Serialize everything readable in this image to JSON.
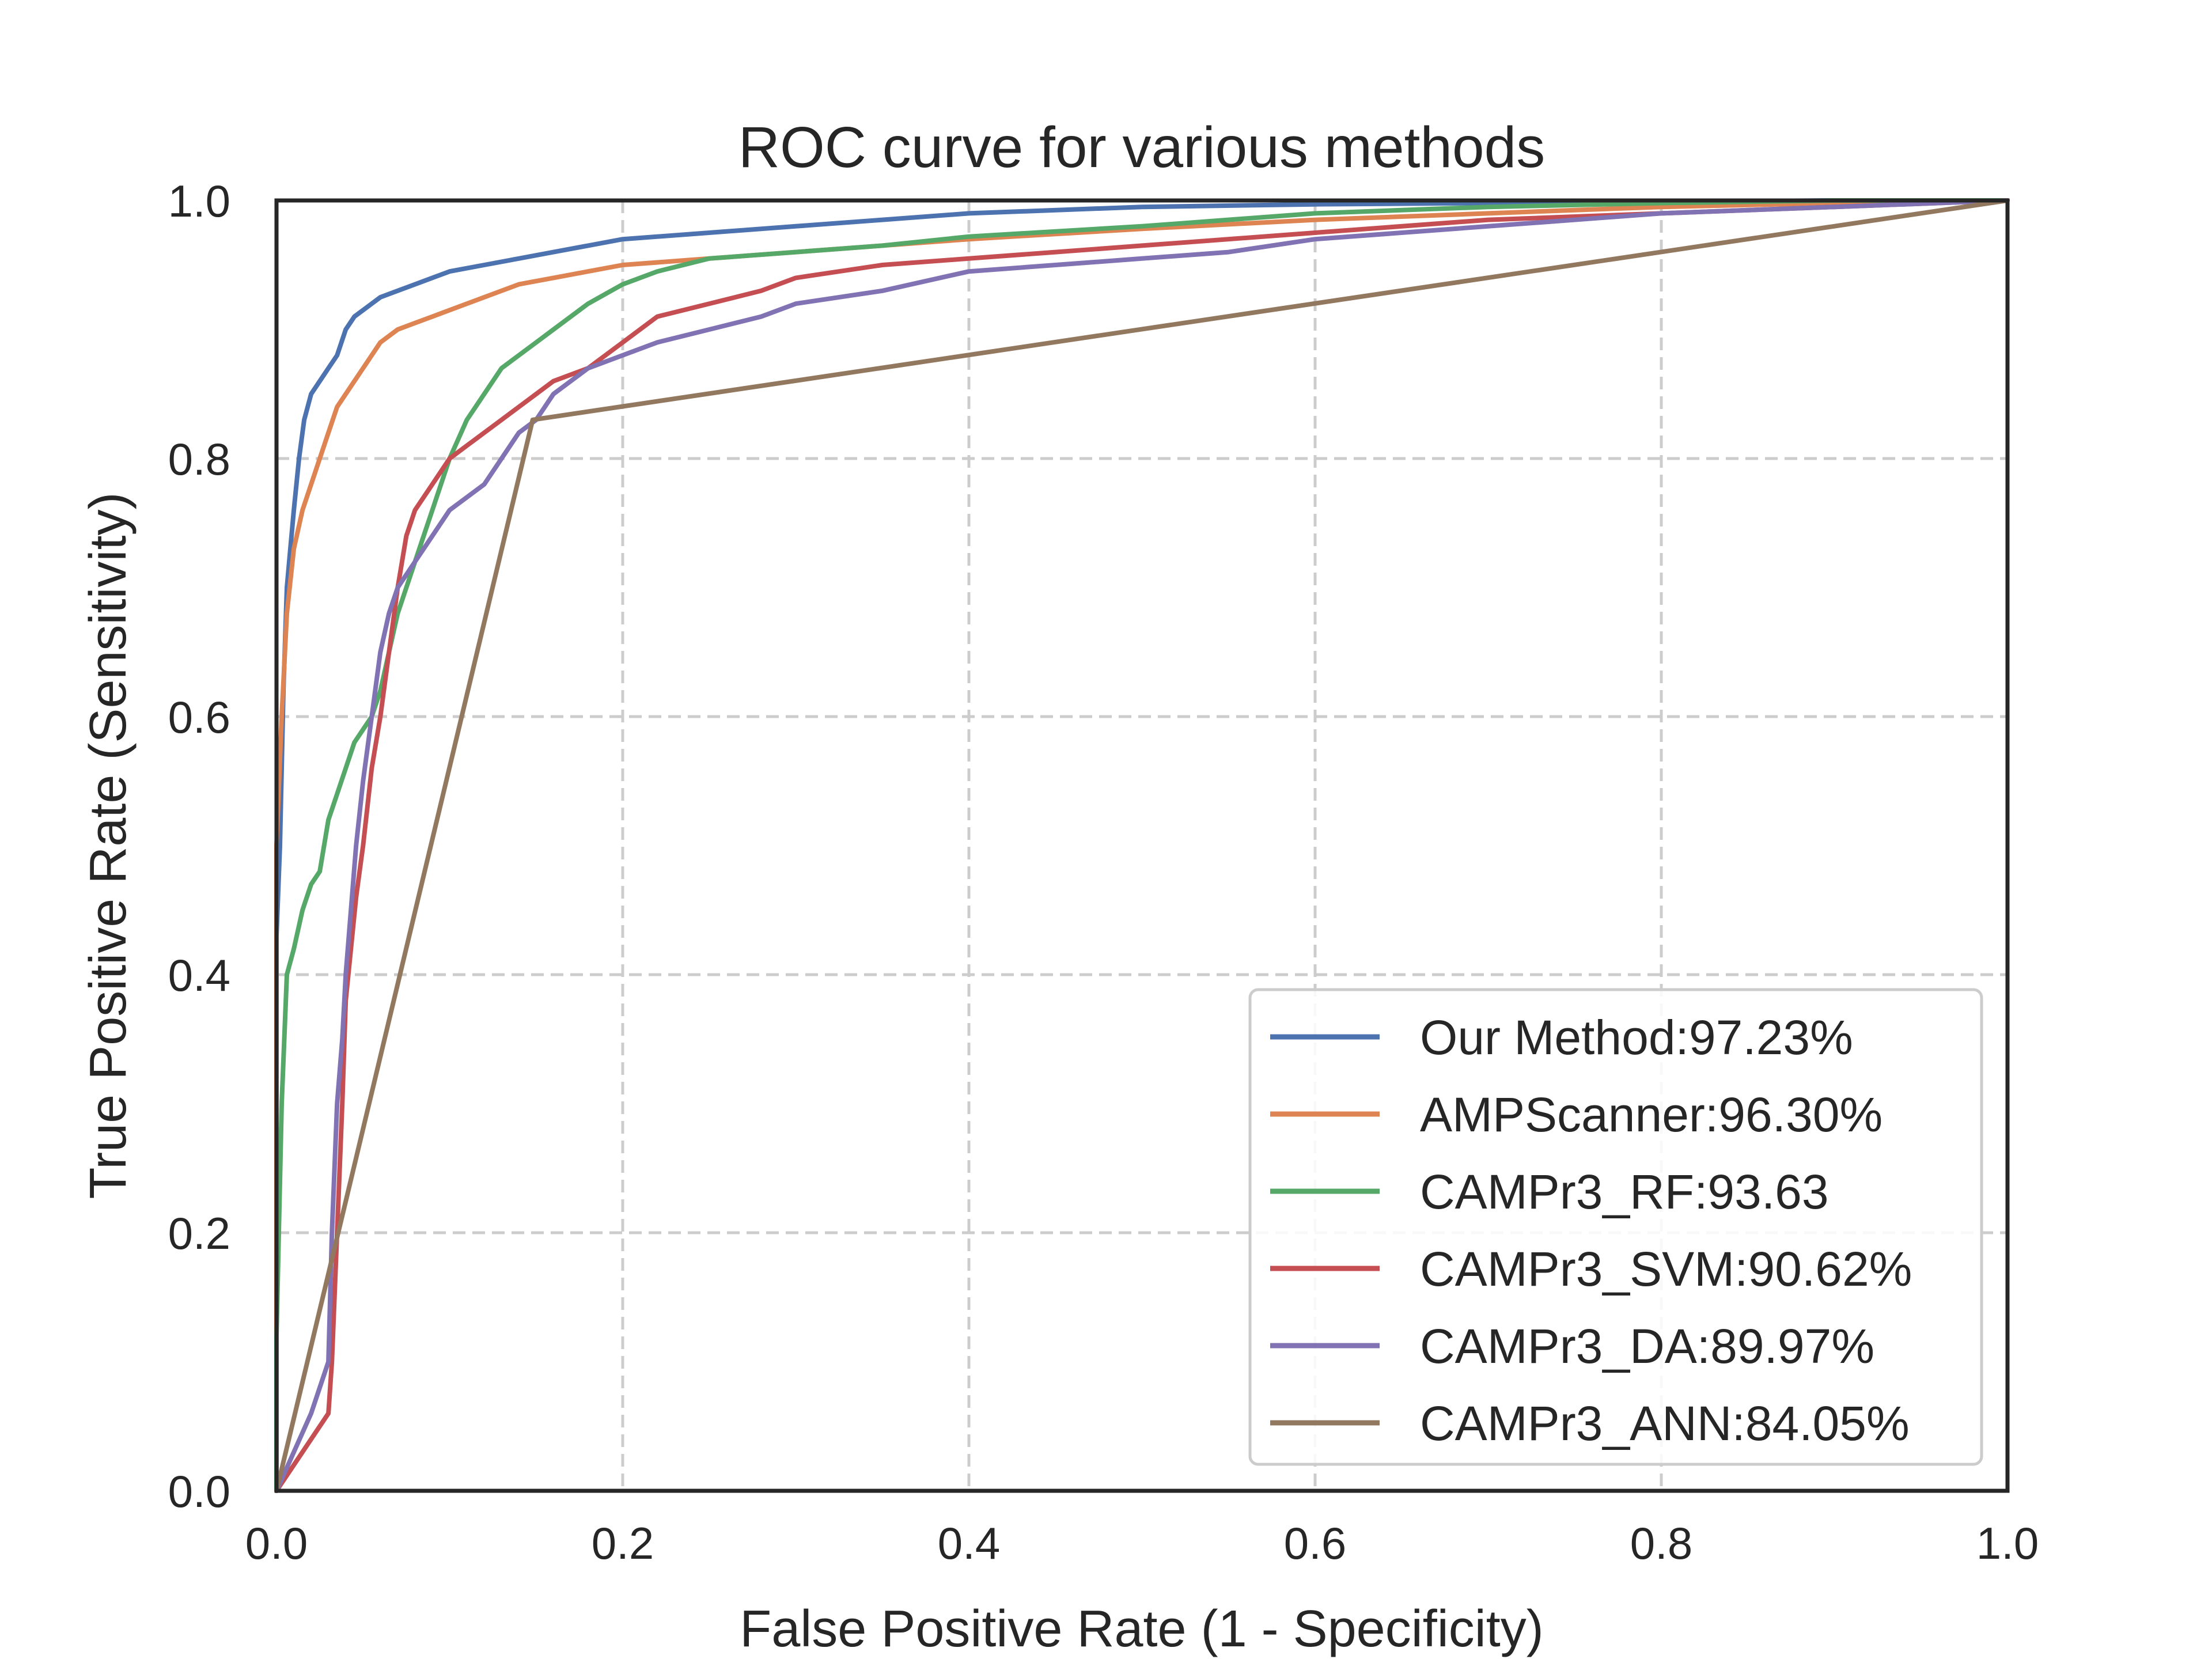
{
  "chart_data": {
    "type": "line",
    "title": "ROC curve for various methods",
    "xlabel": "False Positive Rate (1 - Specificity)",
    "ylabel": "True Positive Rate (Sensitivity)",
    "xlim": [
      0.0,
      1.0
    ],
    "ylim": [
      0.0,
      1.0
    ],
    "x_ticks": [
      "0.0",
      "0.2",
      "0.4",
      "0.6",
      "0.8",
      "1.0"
    ],
    "y_ticks": [
      "0.0",
      "0.2",
      "0.4",
      "0.6",
      "0.8",
      "1.0"
    ],
    "grid": true,
    "legend_position": "lower-right",
    "series": [
      {
        "name": "Our Method:97.23%",
        "color": "#4c72b0",
        "x": [
          0.0,
          0.0,
          0.002,
          0.004,
          0.006,
          0.008,
          0.01,
          0.013,
          0.016,
          0.02,
          0.025,
          0.03,
          0.035,
          0.04,
          0.045,
          0.05,
          0.055,
          0.06,
          0.07,
          0.08,
          0.09,
          0.1,
          0.12,
          0.14,
          0.16,
          0.18,
          0.2,
          0.25,
          0.3,
          0.35,
          0.4,
          0.5,
          0.6,
          0.7,
          0.8,
          0.9,
          1.0
        ],
        "y": [
          0.0,
          0.43,
          0.5,
          0.62,
          0.7,
          0.73,
          0.76,
          0.8,
          0.83,
          0.85,
          0.86,
          0.87,
          0.88,
          0.9,
          0.91,
          0.915,
          0.92,
          0.925,
          0.93,
          0.935,
          0.94,
          0.945,
          0.95,
          0.955,
          0.96,
          0.965,
          0.97,
          0.975,
          0.98,
          0.985,
          0.99,
          0.995,
          0.997,
          0.998,
          0.999,
          1.0,
          1.0
        ]
      },
      {
        "name": "AMPScanner:96.30%",
        "color": "#dd8452",
        "x": [
          0.0,
          0.0,
          0.003,
          0.006,
          0.01,
          0.015,
          0.02,
          0.025,
          0.03,
          0.035,
          0.04,
          0.045,
          0.05,
          0.055,
          0.06,
          0.07,
          0.08,
          0.09,
          0.1,
          0.12,
          0.14,
          0.16,
          0.18,
          0.2,
          0.25,
          0.3,
          0.35,
          0.4,
          0.5,
          0.6,
          0.7,
          0.8,
          0.9,
          1.0
        ],
        "y": [
          0.0,
          0.5,
          0.6,
          0.68,
          0.73,
          0.76,
          0.78,
          0.8,
          0.82,
          0.84,
          0.85,
          0.86,
          0.87,
          0.88,
          0.89,
          0.9,
          0.905,
          0.91,
          0.915,
          0.925,
          0.935,
          0.94,
          0.945,
          0.95,
          0.955,
          0.96,
          0.965,
          0.97,
          0.978,
          0.985,
          0.99,
          0.995,
          0.998,
          1.0
        ]
      },
      {
        "name": "CAMPr3_RF:93.63",
        "color": "#55a868",
        "x": [
          0.0,
          0.0,
          0.003,
          0.006,
          0.01,
          0.015,
          0.02,
          0.025,
          0.03,
          0.035,
          0.04,
          0.045,
          0.05,
          0.055,
          0.06,
          0.065,
          0.07,
          0.075,
          0.08,
          0.09,
          0.1,
          0.11,
          0.12,
          0.13,
          0.14,
          0.15,
          0.16,
          0.18,
          0.2,
          0.22,
          0.25,
          0.3,
          0.35,
          0.4,
          0.5,
          0.6,
          0.7,
          0.8,
          0.9,
          1.0
        ],
        "y": [
          0.0,
          0.12,
          0.3,
          0.4,
          0.42,
          0.45,
          0.47,
          0.48,
          0.52,
          0.54,
          0.56,
          0.58,
          0.59,
          0.6,
          0.62,
          0.65,
          0.68,
          0.7,
          0.72,
          0.76,
          0.8,
          0.83,
          0.85,
          0.87,
          0.88,
          0.89,
          0.9,
          0.92,
          0.935,
          0.945,
          0.955,
          0.96,
          0.965,
          0.972,
          0.98,
          0.99,
          0.995,
          0.998,
          1.0,
          1.0
        ]
      },
      {
        "name": "CAMPr3_SVM:90.62%",
        "color": "#c44e52",
        "x": [
          0.0,
          0.01,
          0.02,
          0.025,
          0.03,
          0.032,
          0.035,
          0.038,
          0.04,
          0.043,
          0.046,
          0.05,
          0.055,
          0.06,
          0.065,
          0.07,
          0.075,
          0.08,
          0.09,
          0.1,
          0.11,
          0.12,
          0.13,
          0.14,
          0.15,
          0.16,
          0.18,
          0.2,
          0.22,
          0.25,
          0.28,
          0.3,
          0.35,
          0.4,
          0.45,
          0.5,
          0.6,
          0.7,
          0.8,
          0.9,
          1.0
        ],
        "y": [
          0.0,
          0.02,
          0.04,
          0.05,
          0.06,
          0.1,
          0.2,
          0.3,
          0.38,
          0.42,
          0.46,
          0.5,
          0.56,
          0.6,
          0.65,
          0.7,
          0.74,
          0.76,
          0.78,
          0.8,
          0.81,
          0.82,
          0.83,
          0.84,
          0.85,
          0.86,
          0.87,
          0.89,
          0.91,
          0.92,
          0.93,
          0.94,
          0.95,
          0.955,
          0.96,
          0.965,
          0.975,
          0.985,
          0.99,
          0.995,
          1.0
        ]
      },
      {
        "name": "CAMPr3_DA:89.97%",
        "color": "#8172b3",
        "x": [
          0.0,
          0.01,
          0.02,
          0.025,
          0.03,
          0.032,
          0.035,
          0.038,
          0.04,
          0.043,
          0.046,
          0.05,
          0.055,
          0.06,
          0.065,
          0.07,
          0.08,
          0.09,
          0.1,
          0.12,
          0.13,
          0.14,
          0.15,
          0.16,
          0.17,
          0.18,
          0.2,
          0.22,
          0.25,
          0.28,
          0.3,
          0.35,
          0.4,
          0.45,
          0.5,
          0.55,
          0.6,
          0.7,
          0.8,
          0.9,
          1.0
        ],
        "y": [
          0.0,
          0.03,
          0.06,
          0.08,
          0.1,
          0.2,
          0.3,
          0.35,
          0.4,
          0.45,
          0.5,
          0.55,
          0.6,
          0.65,
          0.68,
          0.7,
          0.72,
          0.74,
          0.76,
          0.78,
          0.8,
          0.82,
          0.83,
          0.85,
          0.86,
          0.87,
          0.88,
          0.89,
          0.9,
          0.91,
          0.92,
          0.93,
          0.945,
          0.95,
          0.955,
          0.96,
          0.97,
          0.98,
          0.99,
          0.995,
          1.0
        ]
      },
      {
        "name": "CAMPr3_ANN:84.05%",
        "color": "#937860",
        "x": [
          0.0,
          0.148,
          1.0
        ],
        "y": [
          0.0,
          0.83,
          1.0
        ]
      }
    ]
  }
}
